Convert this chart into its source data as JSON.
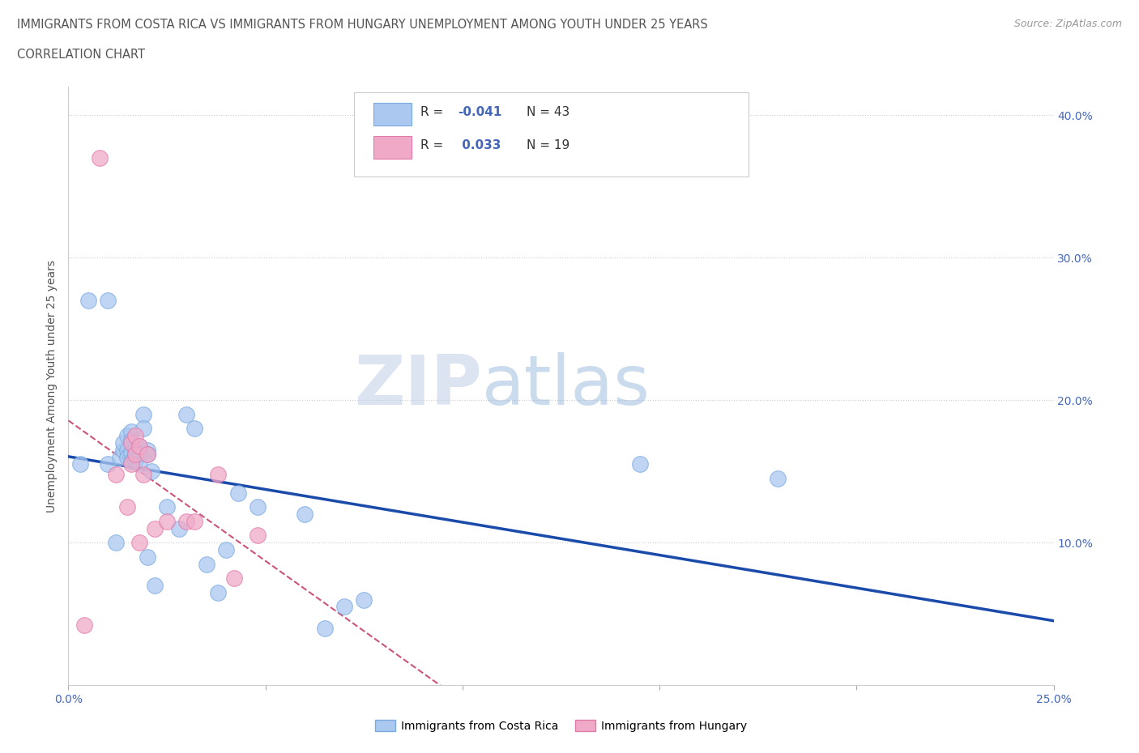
{
  "title_line1": "IMMIGRANTS FROM COSTA RICA VS IMMIGRANTS FROM HUNGARY UNEMPLOYMENT AMONG YOUTH UNDER 25 YEARS",
  "title_line2": "CORRELATION CHART",
  "source_text": "Source: ZipAtlas.com",
  "ylabel": "Unemployment Among Youth under 25 years",
  "watermark_zip": "ZIP",
  "watermark_atlas": "atlas",
  "xlim": [
    0.0,
    0.25
  ],
  "ylim": [
    0.0,
    0.42
  ],
  "legend_labels": [
    "Immigrants from Costa Rica",
    "Immigrants from Hungary"
  ],
  "legend_R_blue": "-0.041",
  "legend_R_pink": "0.033",
  "legend_N_blue": 43,
  "legend_N_pink": 19,
  "costa_rica_color": "#aac8f0",
  "hungary_color": "#f0aac8",
  "costa_rica_edge": "#7aaae0",
  "hungary_edge": "#e07aaa",
  "costa_rica_line_color": "#1a4aaa",
  "hungary_line_color": "#cc5577",
  "grid_color": "#cccccc",
  "title_color": "#555555",
  "axis_label_color": "#4466bb",
  "costa_rica_x": [
    0.003,
    0.005,
    0.01,
    0.01,
    0.012,
    0.013,
    0.014,
    0.014,
    0.015,
    0.015,
    0.015,
    0.016,
    0.016,
    0.016,
    0.016,
    0.017,
    0.017,
    0.017,
    0.018,
    0.018,
    0.018,
    0.019,
    0.019,
    0.02,
    0.02,
    0.02,
    0.021,
    0.022,
    0.025,
    0.028,
    0.03,
    0.032,
    0.035,
    0.038,
    0.04,
    0.043,
    0.048,
    0.06,
    0.065,
    0.07,
    0.075,
    0.145,
    0.18
  ],
  "costa_rica_y": [
    0.155,
    0.27,
    0.155,
    0.27,
    0.1,
    0.16,
    0.165,
    0.17,
    0.175,
    0.165,
    0.16,
    0.178,
    0.172,
    0.163,
    0.157,
    0.165,
    0.162,
    0.158,
    0.168,
    0.162,
    0.155,
    0.19,
    0.18,
    0.165,
    0.162,
    0.09,
    0.15,
    0.07,
    0.125,
    0.11,
    0.19,
    0.18,
    0.085,
    0.065,
    0.095,
    0.135,
    0.125,
    0.12,
    0.04,
    0.055,
    0.06,
    0.155,
    0.145
  ],
  "hungary_x": [
    0.004,
    0.008,
    0.012,
    0.015,
    0.016,
    0.016,
    0.017,
    0.017,
    0.018,
    0.018,
    0.019,
    0.02,
    0.022,
    0.025,
    0.03,
    0.032,
    0.038,
    0.042,
    0.048
  ],
  "hungary_y": [
    0.042,
    0.37,
    0.148,
    0.125,
    0.17,
    0.155,
    0.175,
    0.162,
    0.168,
    0.1,
    0.148,
    0.162,
    0.11,
    0.115,
    0.115,
    0.115,
    0.148,
    0.075,
    0.105
  ]
}
